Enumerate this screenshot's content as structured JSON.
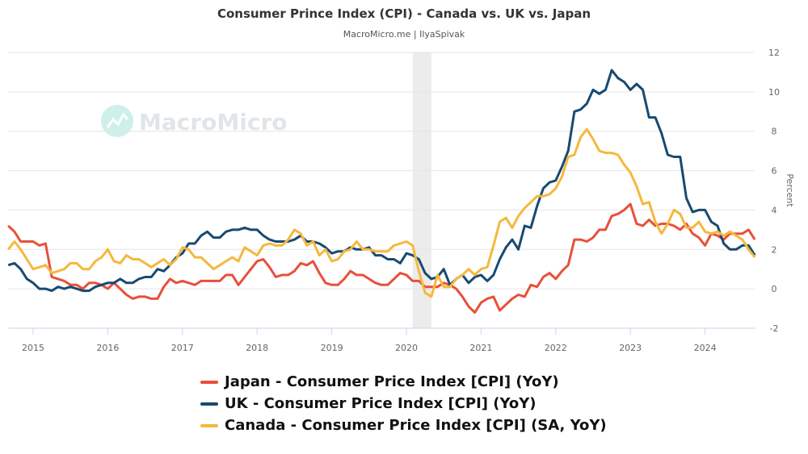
{
  "chart_data": {
    "type": "line",
    "title": "Consumer Prince Index (CPI) - Canada vs. UK vs. Japan",
    "subtitle": "MacroMicro.me | IlyaSpivak",
    "watermark": "MacroMicro",
    "ylabel": "Percent",
    "xlabel": "",
    "ylim": [
      -2,
      12
    ],
    "yticks": [
      "12",
      "10",
      "8",
      "6",
      "4",
      "2",
      "0",
      "-2"
    ],
    "xticks": [
      "2015",
      "2016",
      "2017",
      "2018",
      "2019",
      "2020",
      "2021",
      "2022",
      "2023",
      "2024"
    ],
    "x_start": "2014-09",
    "x_frequency": "monthly",
    "grid": true,
    "legend_position": "bottom",
    "shaded_period": [
      "2020-02",
      "2020-04"
    ],
    "series": [
      {
        "name": "Japan - Consumer Price Index [CPI] (YoY)",
        "color": "#e8503a",
        "values": [
          3.2,
          2.9,
          2.4,
          2.4,
          2.4,
          2.2,
          2.3,
          0.6,
          0.5,
          0.4,
          0.2,
          0.2,
          0.0,
          0.3,
          0.3,
          0.2,
          0.0,
          0.3,
          0.0,
          -0.3,
          -0.5,
          -0.4,
          -0.4,
          -0.5,
          -0.5,
          0.1,
          0.5,
          0.3,
          0.4,
          0.3,
          0.2,
          0.4,
          0.4,
          0.4,
          0.4,
          0.7,
          0.7,
          0.2,
          0.6,
          1.0,
          1.4,
          1.5,
          1.1,
          0.6,
          0.7,
          0.7,
          0.9,
          1.3,
          1.2,
          1.4,
          0.8,
          0.3,
          0.2,
          0.2,
          0.5,
          0.9,
          0.7,
          0.7,
          0.5,
          0.3,
          0.2,
          0.2,
          0.5,
          0.8,
          0.7,
          0.4,
          0.4,
          0.1,
          0.1,
          0.1,
          0.3,
          0.2,
          0.0,
          -0.4,
          -0.9,
          -1.2,
          -0.7,
          -0.5,
          -0.4,
          -1.1,
          -0.8,
          -0.5,
          -0.3,
          -0.4,
          0.2,
          0.1,
          0.6,
          0.8,
          0.5,
          0.9,
          1.2,
          2.5,
          2.5,
          2.4,
          2.6,
          3.0,
          3.0,
          3.7,
          3.8,
          4.0,
          4.3,
          3.3,
          3.2,
          3.5,
          3.2,
          3.3,
          3.3,
          3.2,
          3.0,
          3.3,
          2.8,
          2.6,
          2.2,
          2.8,
          2.7,
          2.5,
          2.8,
          2.8,
          2.8,
          3.0,
          2.5
        ]
      },
      {
        "name": "UK - Consumer Price Index [CPI] (YoY)",
        "color": "#174a72",
        "values": [
          1.2,
          1.3,
          1.0,
          0.5,
          0.3,
          0.0,
          0.0,
          -0.1,
          0.1,
          0.0,
          0.1,
          0.0,
          -0.1,
          -0.1,
          0.1,
          0.2,
          0.3,
          0.3,
          0.5,
          0.3,
          0.3,
          0.5,
          0.6,
          0.6,
          1.0,
          0.9,
          1.2,
          1.6,
          1.8,
          2.3,
          2.3,
          2.7,
          2.9,
          2.6,
          2.6,
          2.9,
          3.0,
          3.0,
          3.1,
          3.0,
          3.0,
          2.7,
          2.5,
          2.4,
          2.4,
          2.4,
          2.5,
          2.7,
          2.4,
          2.4,
          2.3,
          2.1,
          1.8,
          1.9,
          1.9,
          2.1,
          2.0,
          2.0,
          2.1,
          1.7,
          1.7,
          1.5,
          1.5,
          1.3,
          1.8,
          1.7,
          1.5,
          0.8,
          0.5,
          0.6,
          1.0,
          0.2,
          0.5,
          0.7,
          0.3,
          0.6,
          0.7,
          0.4,
          0.7,
          1.5,
          2.1,
          2.5,
          2.0,
          3.2,
          3.1,
          4.2,
          5.1,
          5.4,
          5.5,
          6.2,
          7.0,
          9.0,
          9.1,
          9.4,
          10.1,
          9.9,
          10.1,
          11.1,
          10.7,
          10.5,
          10.1,
          10.4,
          10.1,
          8.7,
          8.7,
          7.9,
          6.8,
          6.7,
          6.7,
          4.6,
          3.9,
          4.0,
          4.0,
          3.4,
          3.2,
          2.3,
          2.0,
          2.0,
          2.2,
          2.2,
          1.7
        ]
      },
      {
        "name": "Canada - Consumer Price Index [CPI] (SA, YoY)",
        "color": "#f5b83d",
        "values": [
          2.0,
          2.4,
          2.0,
          1.5,
          1.0,
          1.1,
          1.2,
          0.8,
          0.9,
          1.0,
          1.3,
          1.3,
          1.0,
          1.0,
          1.4,
          1.6,
          2.0,
          1.4,
          1.3,
          1.7,
          1.5,
          1.5,
          1.3,
          1.1,
          1.3,
          1.5,
          1.2,
          1.5,
          2.1,
          2.0,
          1.6,
          1.6,
          1.3,
          1.0,
          1.2,
          1.4,
          1.6,
          1.4,
          2.1,
          1.9,
          1.7,
          2.2,
          2.3,
          2.2,
          2.2,
          2.5,
          3.0,
          2.8,
          2.2,
          2.4,
          1.7,
          2.0,
          1.4,
          1.5,
          1.9,
          2.0,
          2.4,
          2.0,
          2.0,
          1.9,
          1.9,
          1.9,
          2.2,
          2.3,
          2.4,
          2.2,
          0.9,
          -0.2,
          -0.4,
          0.7,
          0.1,
          0.1,
          0.5,
          0.7,
          1.0,
          0.7,
          1.0,
          1.1,
          2.2,
          3.4,
          3.6,
          3.1,
          3.7,
          4.1,
          4.4,
          4.7,
          4.7,
          4.8,
          5.1,
          5.7,
          6.7,
          6.8,
          7.7,
          8.1,
          7.6,
          7.0,
          6.9,
          6.9,
          6.8,
          6.3,
          5.9,
          5.2,
          4.3,
          4.4,
          3.4,
          2.8,
          3.3,
          4.0,
          3.8,
          3.1,
          3.1,
          3.4,
          2.9,
          2.8,
          2.9,
          2.7,
          2.9,
          2.7,
          2.5,
          2.0,
          1.6
        ]
      }
    ]
  }
}
